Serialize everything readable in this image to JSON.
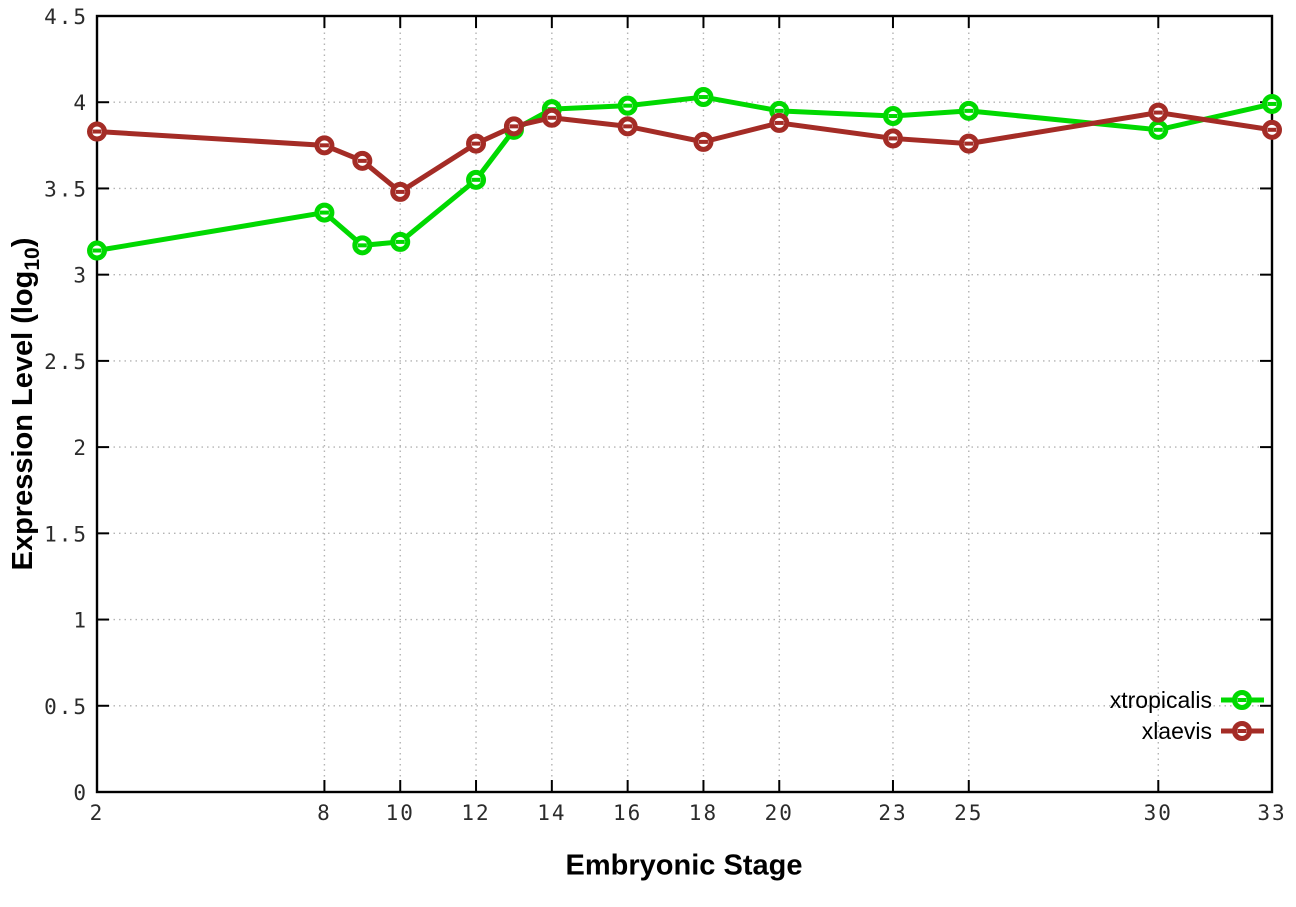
{
  "chart_data": {
    "type": "line",
    "title": "",
    "xlabel": "Embryonic Stage",
    "ylabel": "Expression Level (log10)",
    "ylabel_parts": {
      "prefix": "Expression Level (log",
      "sub": "10",
      "suffix": ")"
    },
    "x": [
      2,
      8,
      9,
      10,
      12,
      13,
      14,
      16,
      18,
      20,
      23,
      25,
      30,
      33
    ],
    "series": [
      {
        "name": "xtropicalis",
        "color": "#00d900",
        "values": [
          3.14,
          3.36,
          3.17,
          3.19,
          3.55,
          3.84,
          3.96,
          3.98,
          4.03,
          3.95,
          3.92,
          3.95,
          3.84,
          3.99
        ]
      },
      {
        "name": "xlaevis",
        "color": "#a42c26",
        "values": [
          3.83,
          3.75,
          3.66,
          3.48,
          3.76,
          3.86,
          3.91,
          3.86,
          3.77,
          3.88,
          3.79,
          3.76,
          3.94,
          3.84
        ]
      }
    ],
    "xlim": [
      2,
      33
    ],
    "ylim": [
      0,
      4.5
    ],
    "xticks": [
      2,
      8,
      10,
      12,
      14,
      16,
      18,
      20,
      23,
      25,
      30,
      33
    ],
    "xtick_labels": [
      "2",
      "8",
      "10",
      "12",
      "14",
      "16",
      "18",
      "20",
      "23",
      "25",
      "30",
      "33"
    ],
    "yticks": [
      0,
      0.5,
      1,
      1.5,
      2,
      2.5,
      3,
      3.5,
      4,
      4.5
    ],
    "ytick_labels": [
      "0",
      "0.5",
      "1",
      "1.5",
      "2",
      "2.5",
      "3",
      "3.5",
      "4",
      "4.5"
    ],
    "grid": true,
    "legend_position": "bottom-right",
    "marker": "open-circle-dash",
    "colors": {
      "grid": "#b3b3b3",
      "frame": "#000000",
      "tick_label": "#2b2b2b",
      "axis_label": "#000000",
      "background": "#ffffff"
    }
  }
}
